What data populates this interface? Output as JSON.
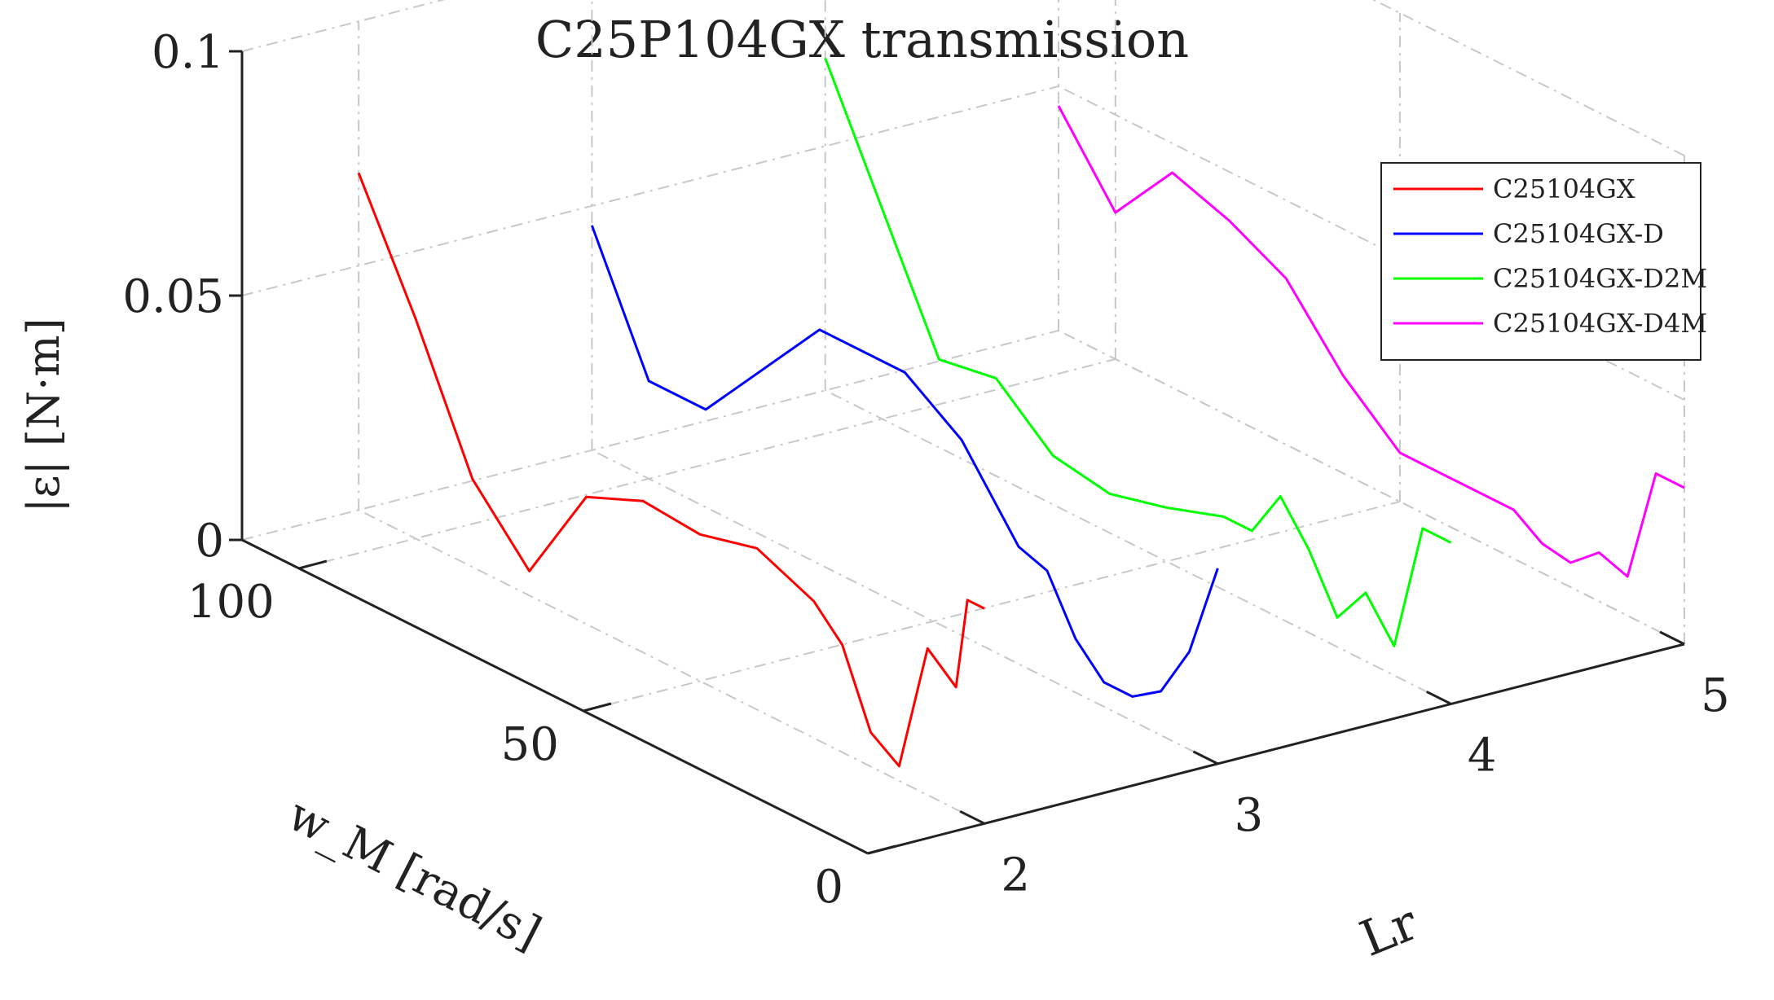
{
  "chart_data": {
    "type": "line",
    "projection": "3d",
    "title": "C25P104GX transmission",
    "xlabel": "Lr",
    "ylabel": "w_M  [rad/s]",
    "zlabel": "|ε|  [N·m]",
    "xlim": [
      1.5,
      5
    ],
    "ylim": [
      0,
      110
    ],
    "zlim": [
      0,
      0.1
    ],
    "xticks": [
      "2",
      "3",
      "4",
      "5"
    ],
    "yticks": [
      "0",
      "50",
      "100"
    ],
    "zticks": [
      "0",
      "0.05",
      "0.1"
    ],
    "grid": true,
    "legend_position": "top-right",
    "series": [
      {
        "name": "C25104GX",
        "color": "#ff0000",
        "x": 2,
        "w": [
          110,
          100,
          90,
          80,
          70,
          60,
          50,
          40,
          30,
          25,
          20,
          15,
          10,
          5,
          3,
          0
        ],
        "values": [
          0.069,
          0.045,
          0.018,
          0.005,
          0.026,
          0.031,
          0.03,
          0.033,
          0.028,
          0.022,
          0.007,
          0.003,
          0.03,
          0.025,
          0.044,
          0.044
        ]
      },
      {
        "name": "C25104GX-D",
        "color": "#0000ff",
        "x": 3,
        "w": [
          110,
          100,
          90,
          70,
          55,
          45,
          35,
          30,
          25,
          20,
          15,
          10,
          5,
          0
        ],
        "values": [
          0.046,
          0.02,
          0.02,
          0.048,
          0.048,
          0.04,
          0.024,
          0.022,
          0.011,
          0.005,
          0.005,
          0.009,
          0.02,
          0.04
        ]
      },
      {
        "name": "C25104GX-D2M",
        "color": "#00ff00",
        "x": 4,
        "w": [
          110,
          90,
          80,
          70,
          60,
          50,
          40,
          35,
          30,
          25,
          20,
          15,
          10,
          5,
          0
        ],
        "values": [
          0.068,
          0.018,
          0.02,
          0.01,
          0.008,
          0.011,
          0.015,
          0.015,
          0.025,
          0.017,
          0.006,
          0.014,
          0.006,
          0.033,
          0.033
        ]
      },
      {
        "name": "C25104GX-D4M",
        "color": "#ff00ff",
        "x": 5,
        "w": [
          110,
          100,
          90,
          80,
          70,
          60,
          50,
          40,
          30,
          25,
          20,
          15,
          10,
          5,
          0
        ],
        "values": [
          0.046,
          0.03,
          0.044,
          0.04,
          0.034,
          0.02,
          0.01,
          0.01,
          0.01,
          0.006,
          0.005,
          0.01,
          0.008,
          0.032,
          0.032
        ]
      }
    ]
  }
}
